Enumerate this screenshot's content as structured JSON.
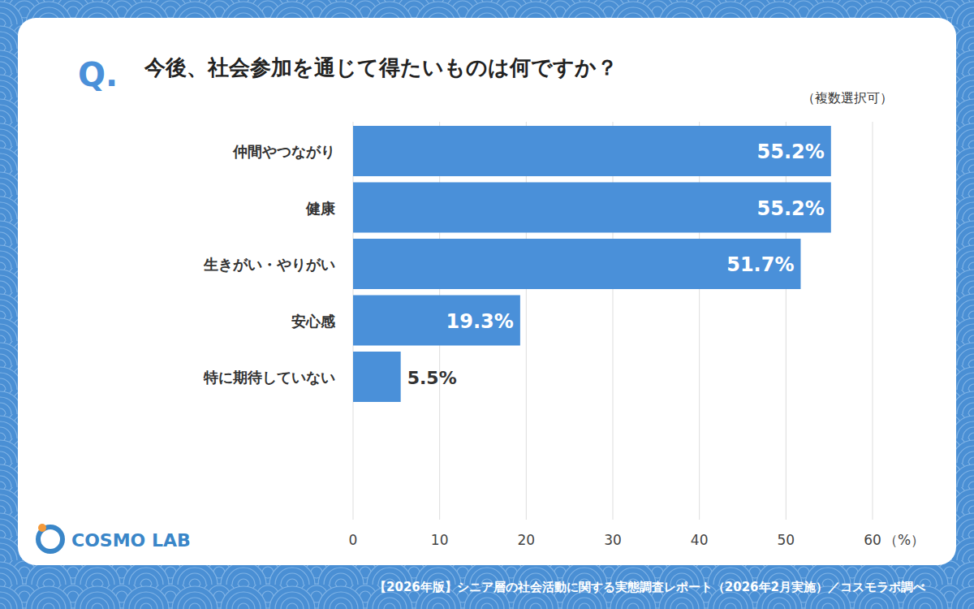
{
  "chart_data": {
    "type": "bar",
    "orientation": "horizontal",
    "title": "今後、社会参加を通じて得たいものは何ですか？",
    "subtitle": "（複数選択可）",
    "x_label": "（%）",
    "annotations": {
      "question": "Q.",
      "logo": "COSMO LAB",
      "source": "【2026年版】シニア層の社会活動に関する実態調査レポート（2026年2月実施）／コスモラボ調べ"
    },
    "categories": [
      "仲間やつながり",
      "健康",
      "生きがい・やりがい",
      "安心感",
      "特に期待していない"
    ],
    "values": [
      55.2,
      55.2,
      51.7,
      19.3,
      5.5
    ],
    "value_labels": [
      "55.2%",
      "55.2%",
      "51.7%",
      "19.3%",
      "5.5%"
    ],
    "color": "#4a90d9",
    "xlim": [
      0,
      60
    ],
    "xticks": [
      0,
      10,
      20,
      30,
      40,
      50,
      60
    ],
    "grid": true,
    "data_labels": true
  }
}
